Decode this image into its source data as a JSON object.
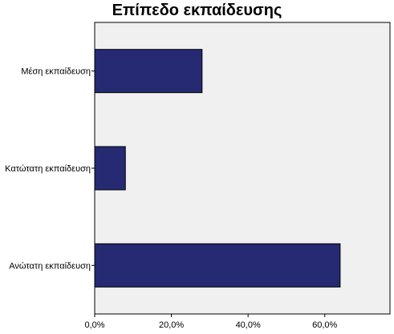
{
  "chart_data": {
    "type": "bar",
    "orientation": "horizontal",
    "title": "Επίπεδο εκπαίδευσης",
    "categories": [
      "Μέση εκπαίδευση",
      "Κατώτατη εκπαίδευση",
      "Ανώτατη εκπαίδευση"
    ],
    "values": [
      28,
      8,
      64
    ],
    "value_unit": "%",
    "xlim": [
      0,
      77
    ],
    "xticks": [
      "0,0%",
      "20,0%",
      "40,0%",
      "60,0%"
    ],
    "xtick_values": [
      0,
      20,
      40,
      60
    ],
    "grid": false,
    "legend": "none",
    "bar_color": "#262a72",
    "plot_background": "#f0f0f0"
  }
}
